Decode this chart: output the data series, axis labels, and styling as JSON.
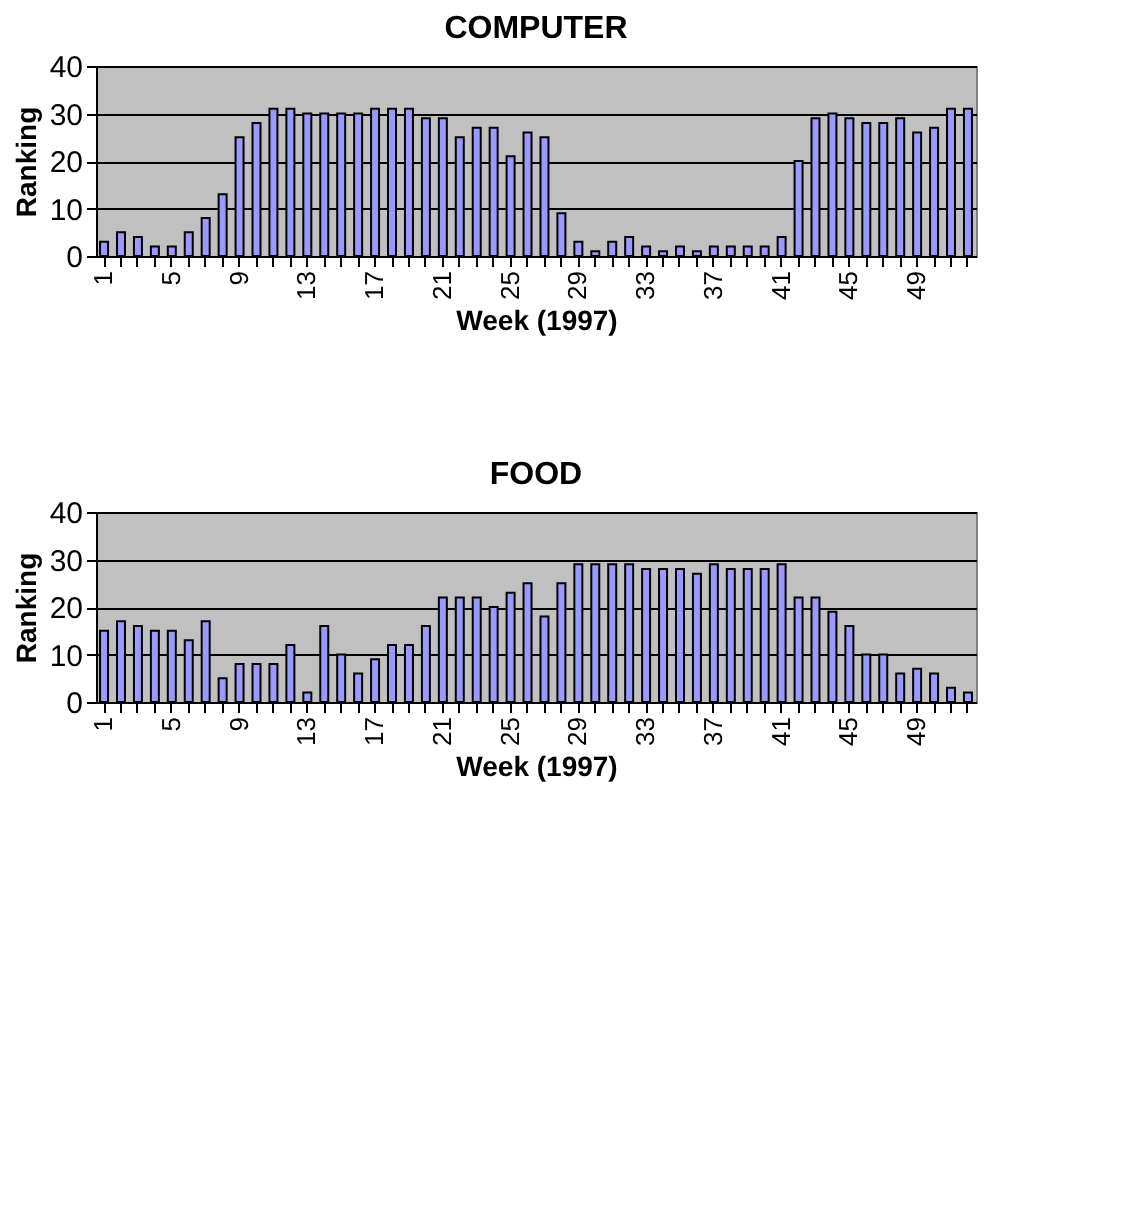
{
  "chart_data": [
    {
      "type": "bar",
      "title": "COMPUTER",
      "xlabel": "Week (1997)",
      "ylabel": "Ranking",
      "categories": [
        "1",
        null,
        null,
        null,
        "5",
        null,
        null,
        null,
        "9",
        null,
        null,
        null,
        "13",
        null,
        null,
        null,
        "17",
        null,
        null,
        null,
        "21",
        null,
        null,
        null,
        "25",
        null,
        null,
        null,
        "29",
        null,
        null,
        null,
        "33",
        null,
        null,
        null,
        "37",
        null,
        null,
        null,
        "41",
        null,
        null,
        null,
        "45",
        null,
        null,
        null,
        "49",
        null,
        null,
        null
      ],
      "values": [
        3,
        5,
        4,
        2,
        2,
        5,
        8,
        13,
        25,
        28,
        31,
        31,
        30,
        30,
        30,
        30,
        31,
        31,
        31,
        29,
        29,
        25,
        27,
        27,
        21,
        26,
        25,
        9,
        3,
        1,
        3,
        4,
        2,
        1,
        2,
        1,
        2,
        2,
        2,
        2,
        4,
        20,
        29,
        30,
        29,
        28,
        28,
        29,
        26,
        27,
        31,
        31
      ],
      "color": "#9999ff",
      "ylim": [
        0,
        40
      ],
      "yticks": [
        0,
        10,
        20,
        30,
        40
      ],
      "grid": "y"
    },
    {
      "type": "bar",
      "title": "FOOD",
      "xlabel": "Week (1997)",
      "ylabel": "Ranking",
      "categories": [
        "1",
        null,
        null,
        null,
        "5",
        null,
        null,
        null,
        "9",
        null,
        null,
        null,
        "13",
        null,
        null,
        null,
        "17",
        null,
        null,
        null,
        "21",
        null,
        null,
        null,
        "25",
        null,
        null,
        null,
        "29",
        null,
        null,
        null,
        "33",
        null,
        null,
        null,
        "37",
        null,
        null,
        null,
        "41",
        null,
        null,
        null,
        "45",
        null,
        null,
        null,
        "49",
        null,
        null,
        null
      ],
      "values": [
        15,
        17,
        16,
        15,
        15,
        13,
        17,
        5,
        8,
        8,
        8,
        12,
        2,
        16,
        10,
        6,
        9,
        12,
        12,
        16,
        22,
        22,
        22,
        20,
        23,
        25,
        18,
        25,
        29,
        29,
        29,
        29,
        28,
        28,
        28,
        27,
        29,
        28,
        28,
        28,
        29,
        22,
        22,
        19,
        16,
        10,
        10,
        6,
        7,
        6,
        3,
        2
      ],
      "color": "#9999ff",
      "ylim": [
        0,
        40
      ],
      "yticks": [
        0,
        10,
        20,
        30,
        40
      ],
      "grid": "y"
    }
  ]
}
